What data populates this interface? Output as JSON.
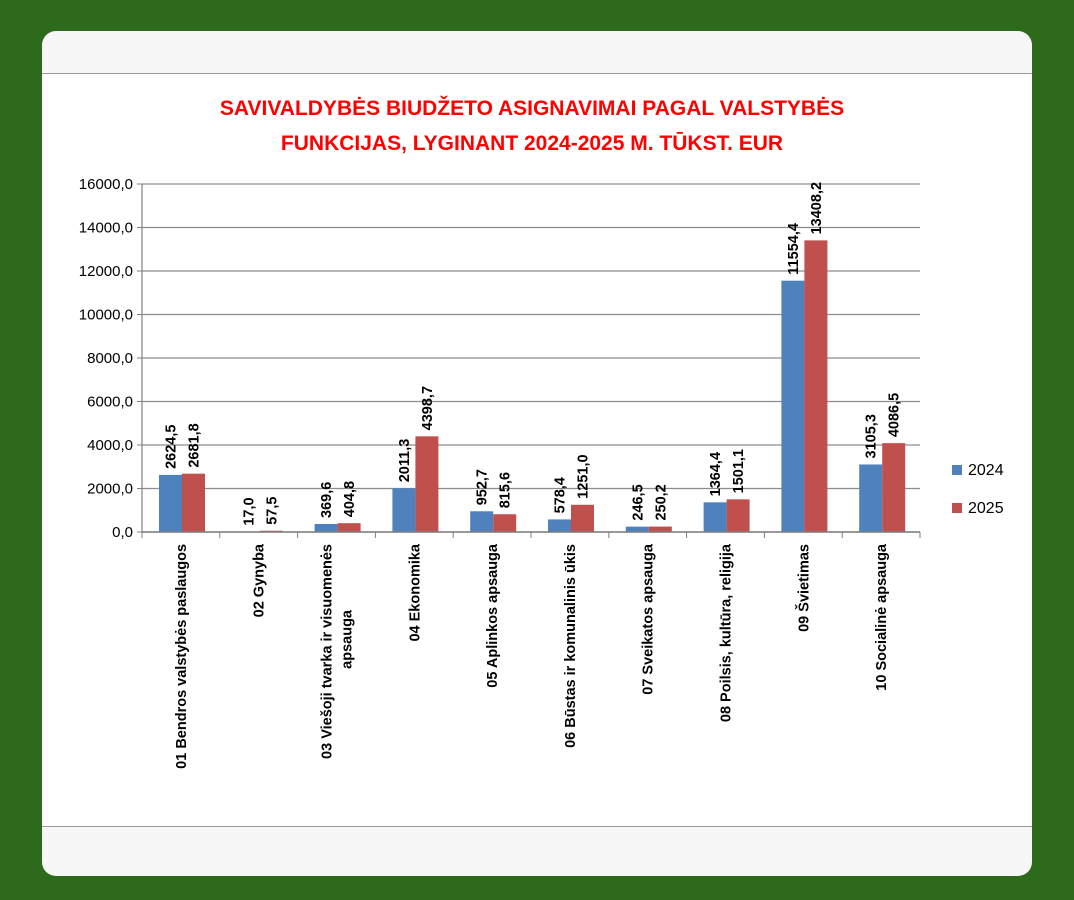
{
  "chart_data": {
    "type": "bar",
    "title_lines": [
      "SAVIVALDYBĖS BIUDŽETO ASIGNAVIMAI PAGAL VALSTYBĖS",
      "FUNKCIJAS, LYGINANT  2024-2025 M. TŪKST. EUR"
    ],
    "categories": [
      [
        "01 Bendros valstybės paslaugos"
      ],
      [
        "02 Gynyba"
      ],
      [
        "03 Viešoji tvarka ir visuomenės",
        "apsauga"
      ],
      [
        "04 Ekonomika"
      ],
      [
        "05 Aplinkos apsauga"
      ],
      [
        "06 Būstas ir komunalinis ūkis"
      ],
      [
        "07 Sveikatos apsauga"
      ],
      [
        "08 Poilsis, kultūra, religija"
      ],
      [
        "09 Švietimas"
      ],
      [
        "10 Socialinė apsauga"
      ]
    ],
    "series": [
      {
        "name": "2024",
        "color": "#4f81bd",
        "values": [
          2624.5,
          17.0,
          369.6,
          2011.3,
          952.7,
          578.4,
          246.5,
          1364.4,
          11554.4,
          3105.3
        ],
        "labels": [
          "2624,5",
          "17,0",
          "369,6",
          "2011,3",
          "952,7",
          "578,4",
          "246,5",
          "1364,4",
          "11554,4",
          "3105,3"
        ]
      },
      {
        "name": "2025",
        "color": "#c0504d",
        "values": [
          2681.8,
          57.5,
          404.8,
          4398.7,
          815.6,
          1251.0,
          250.2,
          1501.1,
          13408.2,
          4086.5
        ],
        "labels": [
          "2681,8",
          "57,5",
          "404,8",
          "4398,7",
          "815,6",
          "1251,0",
          "250,2",
          "1501,1",
          "13408,2",
          "4086,5"
        ]
      }
    ],
    "ylim": [
      0,
      16000
    ],
    "yticks": [
      0,
      2000,
      4000,
      6000,
      8000,
      10000,
      12000,
      14000,
      16000
    ],
    "ytick_labels": [
      "0,0",
      "2000,0",
      "4000,0",
      "6000,0",
      "8000,0",
      "10000,0",
      "12000,0",
      "14000,0",
      "16000,0"
    ],
    "grid": true,
    "legend_position": "right"
  }
}
